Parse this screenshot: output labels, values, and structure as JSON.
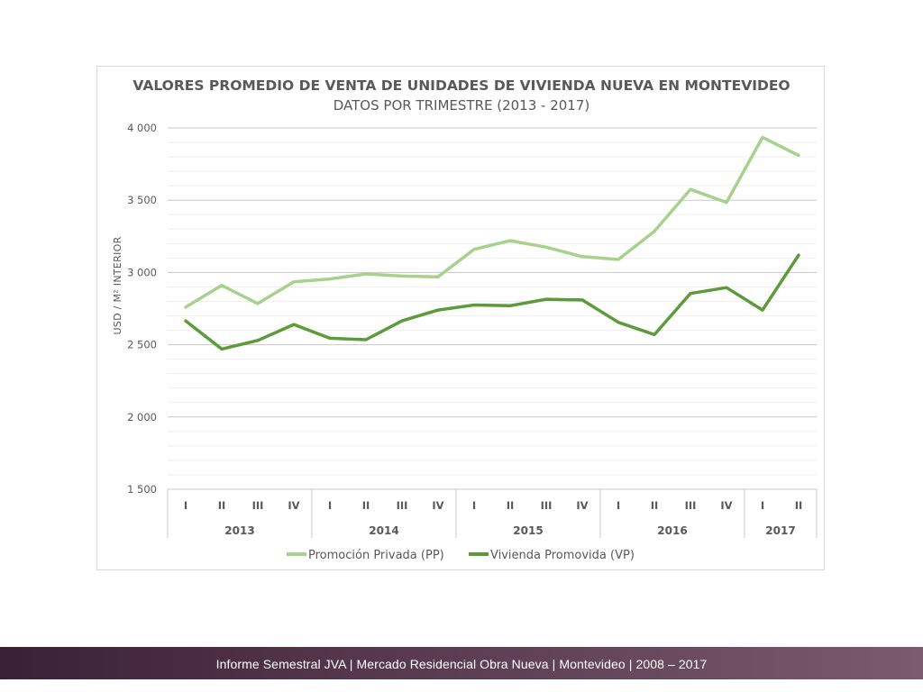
{
  "chart_data": {
    "type": "line",
    "title": "VALORES PROMEDIO DE VENTA DE UNIDADES DE VIVIENDA NUEVA EN MONTEVIDEO",
    "subtitle": "DATOS POR TRIMESTRE (2013 - 2017)",
    "ylabel": "USD / M² INTERIOR",
    "xlabel": "",
    "ylim": [
      1500,
      4000
    ],
    "yticks": [
      {
        "value": 1500,
        "label": "1 500"
      },
      {
        "value": 2000,
        "label": "2 000"
      },
      {
        "value": 2500,
        "label": "2 500"
      },
      {
        "value": 3000,
        "label": "3 000"
      },
      {
        "value": 3500,
        "label": "3 500"
      },
      {
        "value": 4000,
        "label": "4 000"
      }
    ],
    "minor_grid_step": 100,
    "grid": true,
    "legend_position": "bottom",
    "categories": [
      "I",
      "II",
      "III",
      "IV",
      "I",
      "II",
      "III",
      "IV",
      "I",
      "II",
      "III",
      "IV",
      "I",
      "II",
      "III",
      "IV",
      "I",
      "II"
    ],
    "year_groups": [
      {
        "label": "2013",
        "count": 4
      },
      {
        "label": "2014",
        "count": 4
      },
      {
        "label": "2015",
        "count": 4
      },
      {
        "label": "2016",
        "count": 4
      },
      {
        "label": "2017",
        "count": 2
      }
    ],
    "series": [
      {
        "name": "Promoción Privada (PP)",
        "color": "#a9d18e",
        "values": [
          2760,
          2910,
          2785,
          2935,
          2955,
          2990,
          2975,
          2970,
          3160,
          3220,
          3175,
          3110,
          3090,
          3285,
          3575,
          3485,
          3935,
          3810
        ]
      },
      {
        "name": "Vivienda Promovida (VP)",
        "color": "#5b9b3a",
        "values": [
          2665,
          2470,
          2530,
          2640,
          2545,
          2535,
          2665,
          2740,
          2775,
          2770,
          2815,
          2810,
          2655,
          2570,
          2855,
          2895,
          2740,
          3120
        ]
      }
    ]
  },
  "footer": {
    "text": "Informe Semestral JVA | Mercado Residencial Obra Nueva | Montevideo | 2008 – 2017"
  }
}
